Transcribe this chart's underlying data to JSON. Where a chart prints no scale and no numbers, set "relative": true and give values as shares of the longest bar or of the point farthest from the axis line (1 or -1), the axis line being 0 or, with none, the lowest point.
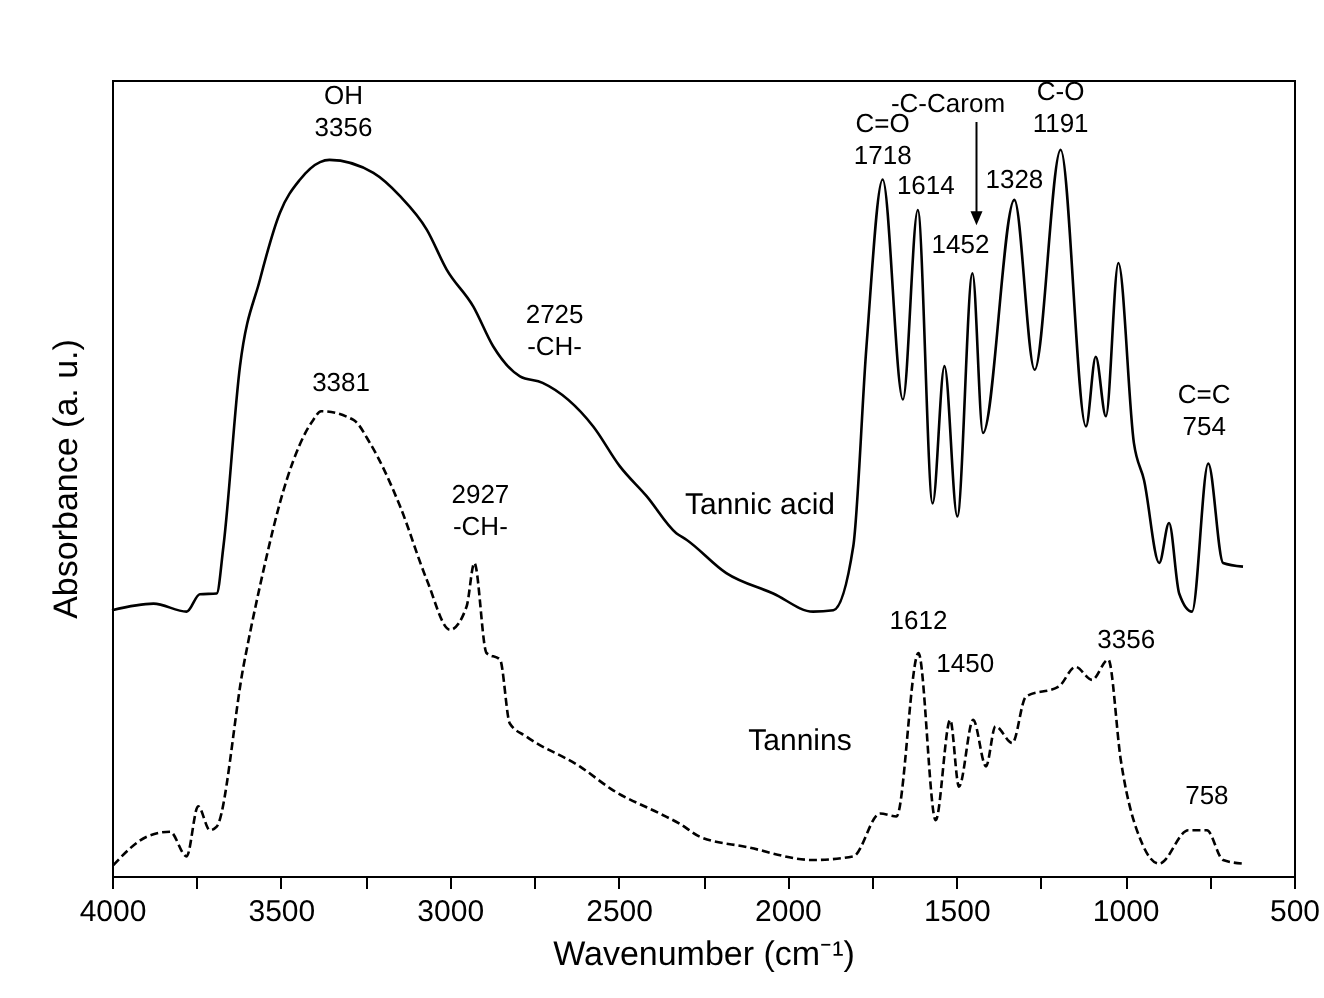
{
  "chart_data": {
    "type": "line",
    "relative": true,
    "xlabel": "Wavenumber (cm⁻¹)",
    "ylabel": "Absorbance (a. u.)",
    "xlim": [
      4000,
      500
    ],
    "xticks": [
      4000,
      {
        "value": 3750,
        "label": null
      },
      3500,
      {
        "value": 3250,
        "label": null
      },
      3000,
      {
        "value": 2750,
        "label": null
      },
      2500,
      {
        "value": 2250,
        "label": null
      },
      2000,
      {
        "value": 1750,
        "label": null
      },
      1500,
      {
        "value": 1250,
        "label": null
      },
      1000,
      {
        "value": 750,
        "label": null
      },
      500
    ],
    "series": [
      {
        "name": "Tannic acid",
        "color": "#000000",
        "line_style": "solid",
        "x": [
          4000,
          3877,
          3779,
          3740,
          3690,
          3670,
          3621,
          3562,
          3503,
          3443,
          3384,
          3356,
          3226,
          3147,
          3068,
          3009,
          2930,
          2871,
          2792,
          2725,
          2575,
          2496,
          2417,
          2329,
          2299,
          2181,
          2042,
          1924,
          1864,
          1805,
          1766,
          1718,
          1658,
          1614,
          1570,
          1535,
          1497,
          1452,
          1421,
          1328,
          1268,
          1191,
          1116,
          1087,
          1057,
          1020,
          974,
          944,
          899,
          870,
          840,
          802,
          754,
          710,
          651
        ],
        "values": [
          0.366,
          0.375,
          0.364,
          0.388,
          0.389,
          0.454,
          0.702,
          0.821,
          0.913,
          0.959,
          0.983,
          0.986,
          0.968,
          0.936,
          0.89,
          0.835,
          0.784,
          0.729,
          0.688,
          0.679,
          0.619,
          0.564,
          0.523,
          0.472,
          0.463,
          0.417,
          0.389,
          0.364,
          0.366,
          0.454,
          0.729,
          0.959,
          0.656,
          0.917,
          0.513,
          0.702,
          0.495,
          0.83,
          0.61,
          0.931,
          0.697,
          1.0,
          0.619,
          0.715,
          0.633,
          0.844,
          0.596,
          0.545,
          0.431,
          0.486,
          0.389,
          0.364,
          0.568,
          0.431,
          0.426
        ]
      },
      {
        "name": "Tannins",
        "color": "#000000",
        "line_style": "dashed",
        "x": [
          3996,
          3897,
          3828,
          3779,
          3745,
          3710,
          3690,
          3611,
          3562,
          3483,
          3404,
          3381,
          3285,
          3236,
          3147,
          3068,
          2999,
          2950,
          2927,
          2891,
          2851,
          2822,
          2773,
          2615,
          2516,
          2378,
          2319,
          2259,
          2121,
          1924,
          1805,
          1726,
          1677,
          1612,
          1561,
          1518,
          1492,
          1450,
          1412,
          1384,
          1334,
          1294,
          1196,
          1147,
          1098,
          1050,
          1013,
          950,
          899,
          813,
          758,
          710,
          651
        ],
        "values": [
          0.015,
          0.054,
          0.061,
          0.027,
          0.096,
          0.063,
          0.068,
          0.288,
          0.399,
          0.545,
          0.628,
          0.64,
          0.628,
          0.596,
          0.509,
          0.408,
          0.339,
          0.371,
          0.431,
          0.307,
          0.298,
          0.21,
          0.192,
          0.151,
          0.118,
          0.086,
          0.072,
          0.054,
          0.04,
          0.022,
          0.027,
          0.086,
          0.082,
          0.307,
          0.077,
          0.215,
          0.123,
          0.215,
          0.151,
          0.206,
          0.183,
          0.247,
          0.261,
          0.288,
          0.27,
          0.298,
          0.16,
          0.045,
          0.017,
          0.063,
          0.063,
          0.022,
          0.017
        ]
      }
    ],
    "annotations": [
      {
        "text": "OH\n3356",
        "x": 3356,
        "y": 0.986
      },
      {
        "text": "2725\n-CH-",
        "x": 2725,
        "y": 0.679
      },
      {
        "text": "C=O\n1718",
        "x": 1718,
        "y": 0.959
      },
      {
        "text": "1614",
        "x": 1614,
        "y": 0.917
      },
      "-C-Carom",
      {
        "text": "1452",
        "x": 1452,
        "y": 0.83
      },
      {
        "text": "1328",
        "x": 1328,
        "y": 0.931
      },
      {
        "text": "C-O\n1191",
        "x": 1191,
        "y": 1.0
      },
      {
        "text": "C=C\n754",
        "x": 754,
        "y": 0.568
      },
      {
        "text": "3381",
        "x": 3381,
        "y": 0.64
      },
      {
        "text": "2927\n-CH-",
        "x": 2927,
        "y": 0.431
      },
      {
        "text": "1612",
        "x": 1612,
        "y": 0.307
      },
      {
        "text": "1450",
        "x": 1450,
        "y": 0.215
      },
      {
        "text": "3356",
        "x": 1050,
        "y": 0.298
      },
      {
        "text": "758",
        "x": 758,
        "y": 0.063
      }
    ]
  }
}
